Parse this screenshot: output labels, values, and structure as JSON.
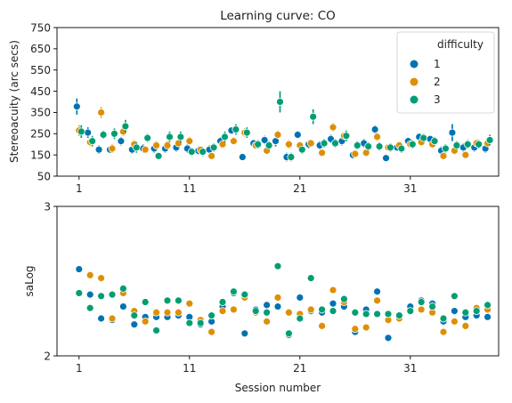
{
  "colors": {
    "d1": "#0173b2",
    "d2": "#de8f05",
    "d3": "#029e73"
  },
  "chart_data": [
    {
      "type": "scatter",
      "title": "Learning curve: CO",
      "xlabel": "",
      "ylabel": "Stereoacuity (arc secs)",
      "xlim": [
        -1,
        39
      ],
      "ylim": [
        50,
        750
      ],
      "xticks": [
        1,
        11,
        21,
        31
      ],
      "yticks": [
        50,
        150,
        250,
        350,
        450,
        550,
        650,
        750
      ],
      "legend": {
        "title": "difficulty",
        "placement": "top-right",
        "entries": [
          "1",
          "2",
          "3"
        ]
      },
      "x": [
        1,
        2,
        3,
        4,
        5,
        6,
        7,
        8,
        9,
        10,
        11,
        12,
        13,
        14,
        15,
        16,
        17,
        18,
        19,
        20,
        21,
        22,
        23,
        24,
        25,
        26,
        27,
        28,
        29,
        30,
        31,
        32,
        33,
        34,
        35,
        36,
        37,
        38
      ],
      "series": [
        {
          "name": "1",
          "color": "#0173b2",
          "values": [
            378,
            255,
            175,
            175,
            215,
            175,
            180,
            180,
            180,
            185,
            180,
            170,
            175,
            215,
            265,
            140,
            205,
            220,
            215,
            140,
            245,
            200,
            195,
            225,
            215,
            150,
            205,
            270,
            135,
            185,
            215,
            235,
            225,
            170,
            255,
            185,
            185,
            180
          ],
          "errors": [
            38,
            25,
            20,
            15,
            20,
            20,
            20,
            20,
            20,
            20,
            20,
            20,
            20,
            20,
            15,
            15,
            15,
            20,
            25,
            20,
            18,
            20,
            20,
            20,
            20,
            15,
            20,
            20,
            15,
            18,
            18,
            18,
            18,
            20,
            40,
            20,
            20,
            20
          ]
        },
        {
          "name": "2",
          "color": "#de8f05",
          "values": [
            265,
            210,
            350,
            180,
            260,
            200,
            175,
            195,
            195,
            205,
            215,
            175,
            145,
            200,
            215,
            255,
            195,
            170,
            245,
            200,
            195,
            205,
            160,
            280,
            240,
            155,
            160,
            235,
            185,
            195,
            200,
            210,
            200,
            145,
            170,
            150,
            205,
            205
          ],
          "errors": [
            25,
            20,
            25,
            20,
            20,
            20,
            15,
            20,
            20,
            20,
            20,
            15,
            15,
            18,
            18,
            20,
            15,
            15,
            20,
            20,
            18,
            18,
            15,
            20,
            20,
            15,
            15,
            20,
            15,
            18,
            18,
            18,
            18,
            15,
            18,
            15,
            18,
            18
          ]
        },
        {
          "name": "3",
          "color": "#029e73",
          "values": [
            260,
            215,
            245,
            250,
            285,
            185,
            230,
            145,
            235,
            235,
            165,
            165,
            185,
            235,
            270,
            255,
            200,
            195,
            400,
            140,
            175,
            330,
            205,
            205,
            240,
            195,
            190,
            190,
            185,
            180,
            200,
            230,
            215,
            180,
            195,
            200,
            200,
            220
          ],
          "errors": [
            30,
            25,
            20,
            25,
            30,
            25,
            20,
            15,
            25,
            25,
            20,
            20,
            20,
            25,
            25,
            25,
            20,
            20,
            50,
            20,
            20,
            35,
            20,
            20,
            25,
            20,
            20,
            20,
            20,
            20,
            20,
            20,
            20,
            20,
            20,
            20,
            20,
            25
          ]
        }
      ]
    },
    {
      "type": "scatter",
      "title": "",
      "xlabel": "Session number",
      "ylabel": "saLog",
      "xlim": [
        -1,
        39
      ],
      "ylim": [
        2,
        3
      ],
      "xticks": [
        1,
        11,
        21,
        31
      ],
      "yticks": [
        2,
        3
      ],
      "x": [
        1,
        2,
        3,
        4,
        5,
        6,
        7,
        8,
        9,
        10,
        11,
        12,
        13,
        14,
        15,
        16,
        17,
        18,
        19,
        20,
        21,
        22,
        23,
        24,
        25,
        26,
        27,
        28,
        29,
        30,
        31,
        32,
        33,
        34,
        35,
        36,
        37,
        38
      ],
      "series": [
        {
          "name": "1",
          "color": "#0173b2",
          "values": [
            2.58,
            2.41,
            2.25,
            2.24,
            2.33,
            2.21,
            2.26,
            2.26,
            2.26,
            2.27,
            2.26,
            2.21,
            2.23,
            2.33,
            2.42,
            2.15,
            2.31,
            2.34,
            2.33,
            2.14,
            2.39,
            2.3,
            2.29,
            2.35,
            2.33,
            2.16,
            2.31,
            2.43,
            2.12,
            2.26,
            2.33,
            2.37,
            2.35,
            2.23,
            2.3,
            2.26,
            2.27,
            2.26
          ]
        },
        {
          "name": "2",
          "color": "#de8f05",
          "values": [
            2.42,
            2.54,
            2.52,
            2.25,
            2.42,
            2.3,
            2.23,
            2.29,
            2.29,
            2.29,
            2.35,
            2.24,
            2.16,
            2.3,
            2.31,
            2.39,
            2.29,
            2.23,
            2.39,
            2.29,
            2.28,
            2.31,
            2.2,
            2.44,
            2.36,
            2.18,
            2.19,
            2.37,
            2.24,
            2.25,
            2.3,
            2.31,
            2.29,
            2.16,
            2.23,
            2.2,
            2.32,
            2.31
          ]
        },
        {
          "name": "3",
          "color": "#029e73",
          "values": [
            2.42,
            2.32,
            2.4,
            2.41,
            2.45,
            2.27,
            2.36,
            2.17,
            2.37,
            2.37,
            2.22,
            2.22,
            2.27,
            2.36,
            2.43,
            2.41,
            2.3,
            2.29,
            2.6,
            2.15,
            2.25,
            2.52,
            2.31,
            2.3,
            2.38,
            2.29,
            2.28,
            2.28,
            2.28,
            2.27,
            2.3,
            2.36,
            2.33,
            2.25,
            2.4,
            2.29,
            2.3,
            2.34
          ]
        }
      ]
    }
  ]
}
